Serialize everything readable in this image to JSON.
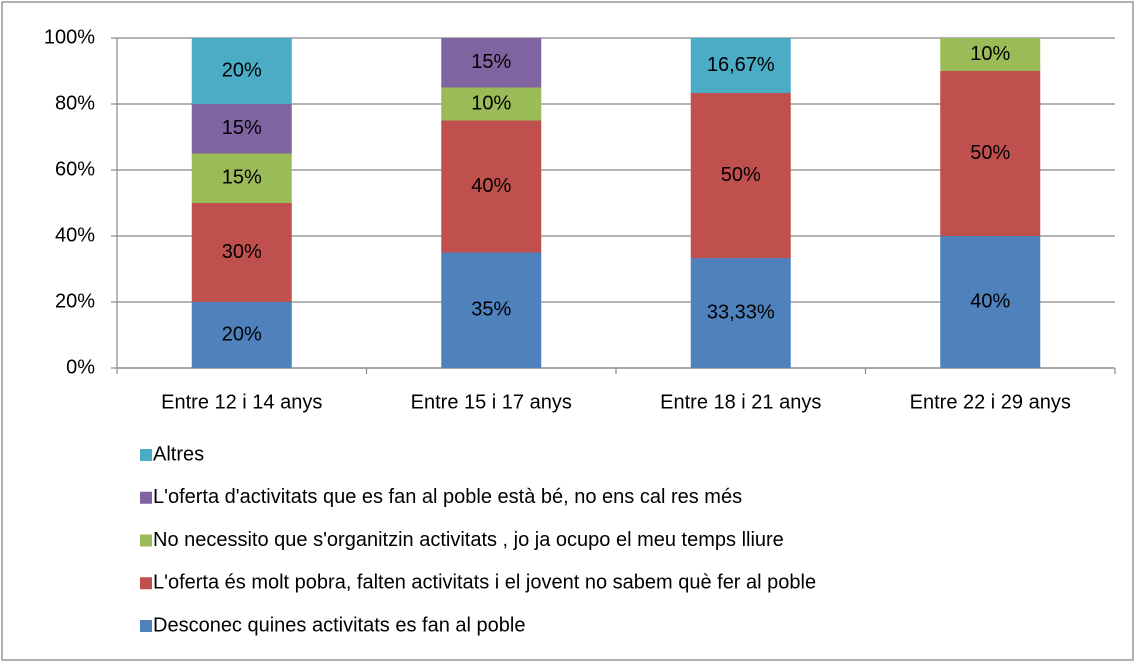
{
  "chart_data": {
    "type": "stacked_bar",
    "categories": [
      "Entre 12 i 14 anys",
      "Entre 15 i 17 anys",
      "Entre 18 i 21 anys",
      "Entre 22 i 29 anys"
    ],
    "series": [
      {
        "name": "Desconec quines activitats es fan al poble",
        "color": "#4f81bd",
        "values": [
          20,
          35,
          33.33,
          40
        ],
        "value_labels": [
          "20%",
          "35%",
          "33,33%",
          "40%"
        ]
      },
      {
        "name": "L'oferta és molt pobra, falten activitats i el jovent no sabem què fer al poble",
        "color": "#c0504d",
        "values": [
          30,
          40,
          50,
          50
        ],
        "value_labels": [
          "30%",
          "40%",
          "50%",
          "50%"
        ]
      },
      {
        "name": "No necessito que s'organitzin activitats , jo ja ocupo el meu temps lliure",
        "color": "#9bbb59",
        "values": [
          15,
          10,
          null,
          10
        ],
        "value_labels": [
          "15%",
          "10%",
          null,
          "10%"
        ]
      },
      {
        "name": "L'oferta d'activitats que es fan al poble està bé, no ens cal res més",
        "color": "#8064a2",
        "values": [
          15,
          15,
          null,
          null
        ],
        "value_labels": [
          "15%",
          "15%",
          null,
          null
        ]
      },
      {
        "name": "Altres",
        "color": "#4bacc6",
        "values": [
          20,
          null,
          16.67,
          null
        ],
        "value_labels": [
          "20%",
          null,
          "16,67%",
          null
        ]
      }
    ],
    "ylim": [
      0,
      100
    ],
    "yticks": [
      {
        "value": 0,
        "label": "0%"
      },
      {
        "value": 20,
        "label": "20%"
      },
      {
        "value": 40,
        "label": "40%"
      },
      {
        "value": 60,
        "label": "60%"
      },
      {
        "value": 80,
        "label": "80%"
      },
      {
        "value": 100,
        "label": "100%"
      }
    ],
    "grid": true,
    "legend": "bottom"
  }
}
